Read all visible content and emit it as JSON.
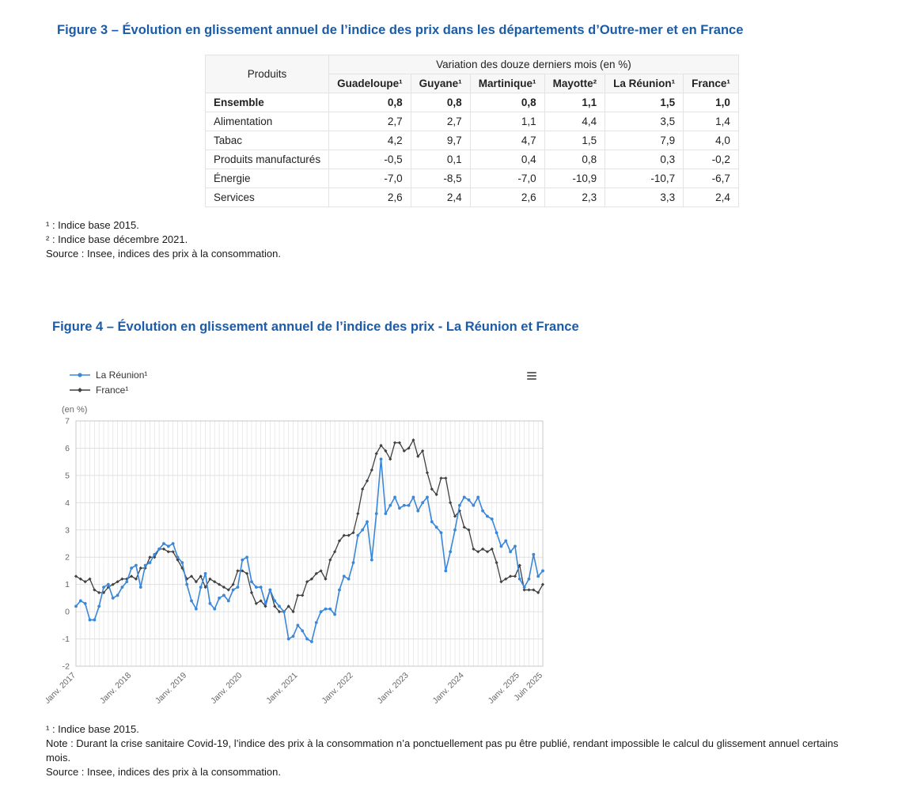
{
  "theme": {
    "title_color": "#1b5ca8",
    "reunion_series_color": "#3a87d9",
    "france_series_color": "#404040"
  },
  "figure3": {
    "title": "Figure 3 – Évolution en glissement annuel de l’indice des prix dans les départements d’Outre-mer et en France",
    "footnotes": [
      "¹ : Indice base 2015.",
      "² : Indice base décembre 2021.",
      "Source : Insee, indices des prix à la consommation."
    ]
  },
  "figure4": {
    "title": "Figure 4 – Évolution en glissement annuel de l’indice des prix - La Réunion et France",
    "menu_icon": "hamburger-menu",
    "footnotes": [
      "¹ : Indice base 2015.",
      "Note : Durant la crise sanitaire Covid-19, l’indice des prix à la consommation n’a ponctuellement pas pu être publié, rendant impossible le calcul du glissement annuel certains mois.",
      "Source : Insee, indices des prix à la consommation."
    ]
  },
  "chart_data": [
    {
      "type": "table",
      "row_header": "Produits",
      "group_header": "Variation des douze derniers mois (en %)",
      "columns": [
        "Guadeloupe¹",
        "Guyane¹",
        "Martinique¹",
        "Mayotte²",
        "La Réunion¹",
        "France¹"
      ],
      "rows": [
        {
          "label": "Ensemble",
          "bold": true,
          "values": [
            "0,8",
            "0,8",
            "0,8",
            "1,1",
            "1,5",
            "1,0"
          ]
        },
        {
          "label": "Alimentation",
          "bold": false,
          "values": [
            "2,7",
            "2,7",
            "1,1",
            "4,4",
            "3,5",
            "1,4"
          ]
        },
        {
          "label": "Tabac",
          "bold": false,
          "values": [
            "4,2",
            "9,7",
            "4,7",
            "1,5",
            "7,9",
            "4,0"
          ]
        },
        {
          "label": "Produits manufacturés",
          "bold": false,
          "values": [
            "-0,5",
            "0,1",
            "0,4",
            "0,8",
            "0,3",
            "-0,2"
          ]
        },
        {
          "label": "Énergie",
          "bold": false,
          "values": [
            "-7,0",
            "-8,5",
            "-7,0",
            "-10,9",
            "-10,7",
            "-6,7"
          ]
        },
        {
          "label": "Services",
          "bold": false,
          "values": [
            "2,6",
            "2,4",
            "2,6",
            "2,3",
            "3,3",
            "2,4"
          ]
        }
      ]
    },
    {
      "type": "line",
      "title": "",
      "xlabel": "",
      "ylabel": "(en %)",
      "ylim": [
        -2,
        7
      ],
      "grid": "both",
      "legend_position": "top-left",
      "x_start": "2017-01",
      "x_end": "2025-06",
      "x_frequency": "monthly",
      "x_tick_indices": [
        0,
        12,
        24,
        36,
        48,
        60,
        72,
        84,
        96,
        101
      ],
      "x_tick_labels": [
        "Janv. 2017",
        "Janv. 2018",
        "Janv. 2019",
        "Janv. 2020",
        "Janv. 2021",
        "Janv. 2022",
        "Janv. 2023",
        "Janv. 2024",
        "Janv. 2025",
        "Juin 2025"
      ],
      "y_tick_labels": [
        -2,
        -1,
        0,
        1,
        2,
        3,
        4,
        5,
        6,
        7
      ],
      "series": [
        {
          "name": "La Réunion¹",
          "color": "#3a87d9",
          "marker": "circle",
          "values": [
            0.2,
            0.4,
            0.3,
            -0.3,
            -0.3,
            0.2,
            0.9,
            1.0,
            0.5,
            0.6,
            0.9,
            1.1,
            1.6,
            1.7,
            0.9,
            1.7,
            1.8,
            2.1,
            2.3,
            2.5,
            2.4,
            2.5,
            2.0,
            1.8,
            1.0,
            0.4,
            0.1,
            0.9,
            1.4,
            0.3,
            0.1,
            0.5,
            0.6,
            0.4,
            0.8,
            0.9,
            1.9,
            2.0,
            1.1,
            0.9,
            0.9,
            0.3,
            0.8,
            0.4,
            0.2,
            0.0,
            -1.0,
            -0.9,
            -0.5,
            -0.7,
            -1.0,
            -1.1,
            -0.4,
            0.0,
            0.1,
            0.1,
            -0.1,
            0.8,
            1.3,
            1.2,
            1.8,
            2.8,
            3.0,
            3.3,
            1.9,
            3.6,
            5.6,
            3.6,
            3.9,
            4.2,
            3.8,
            3.9,
            3.9,
            4.2,
            3.7,
            4.0,
            4.2,
            3.3,
            3.1,
            2.9,
            1.5,
            2.2,
            3.0,
            3.9,
            4.2,
            4.1,
            3.9,
            4.2,
            3.7,
            3.5,
            3.4,
            2.9,
            2.4,
            2.6,
            2.2,
            2.4,
            1.2,
            0.9,
            1.2,
            2.1,
            1.3,
            1.5
          ]
        },
        {
          "name": "France¹",
          "color": "#404040",
          "marker": "diamond",
          "values": [
            1.3,
            1.2,
            1.1,
            1.2,
            0.8,
            0.7,
            0.7,
            0.9,
            1.0,
            1.1,
            1.2,
            1.2,
            1.3,
            1.2,
            1.6,
            1.6,
            2.0,
            2.0,
            2.3,
            2.3,
            2.2,
            2.2,
            1.9,
            1.6,
            1.2,
            1.3,
            1.1,
            1.3,
            0.9,
            1.2,
            1.1,
            1.0,
            0.9,
            0.8,
            1.0,
            1.5,
            1.5,
            1.4,
            0.7,
            0.3,
            0.4,
            0.2,
            0.8,
            0.2,
            0.0,
            0.0,
            0.2,
            0.0,
            0.6,
            0.6,
            1.1,
            1.2,
            1.4,
            1.5,
            1.2,
            1.9,
            2.2,
            2.6,
            2.8,
            2.8,
            2.9,
            3.6,
            4.5,
            4.8,
            5.2,
            5.8,
            6.1,
            5.9,
            5.6,
            6.2,
            6.2,
            5.9,
            6.0,
            6.3,
            5.7,
            5.9,
            5.1,
            4.5,
            4.3,
            4.9,
            4.9,
            4.0,
            3.5,
            3.7,
            3.1,
            3.0,
            2.3,
            2.2,
            2.3,
            2.2,
            2.3,
            1.8,
            1.1,
            1.2,
            1.3,
            1.3,
            1.7,
            0.8,
            0.8,
            0.8,
            0.7,
            1.0
          ]
        }
      ]
    }
  ]
}
